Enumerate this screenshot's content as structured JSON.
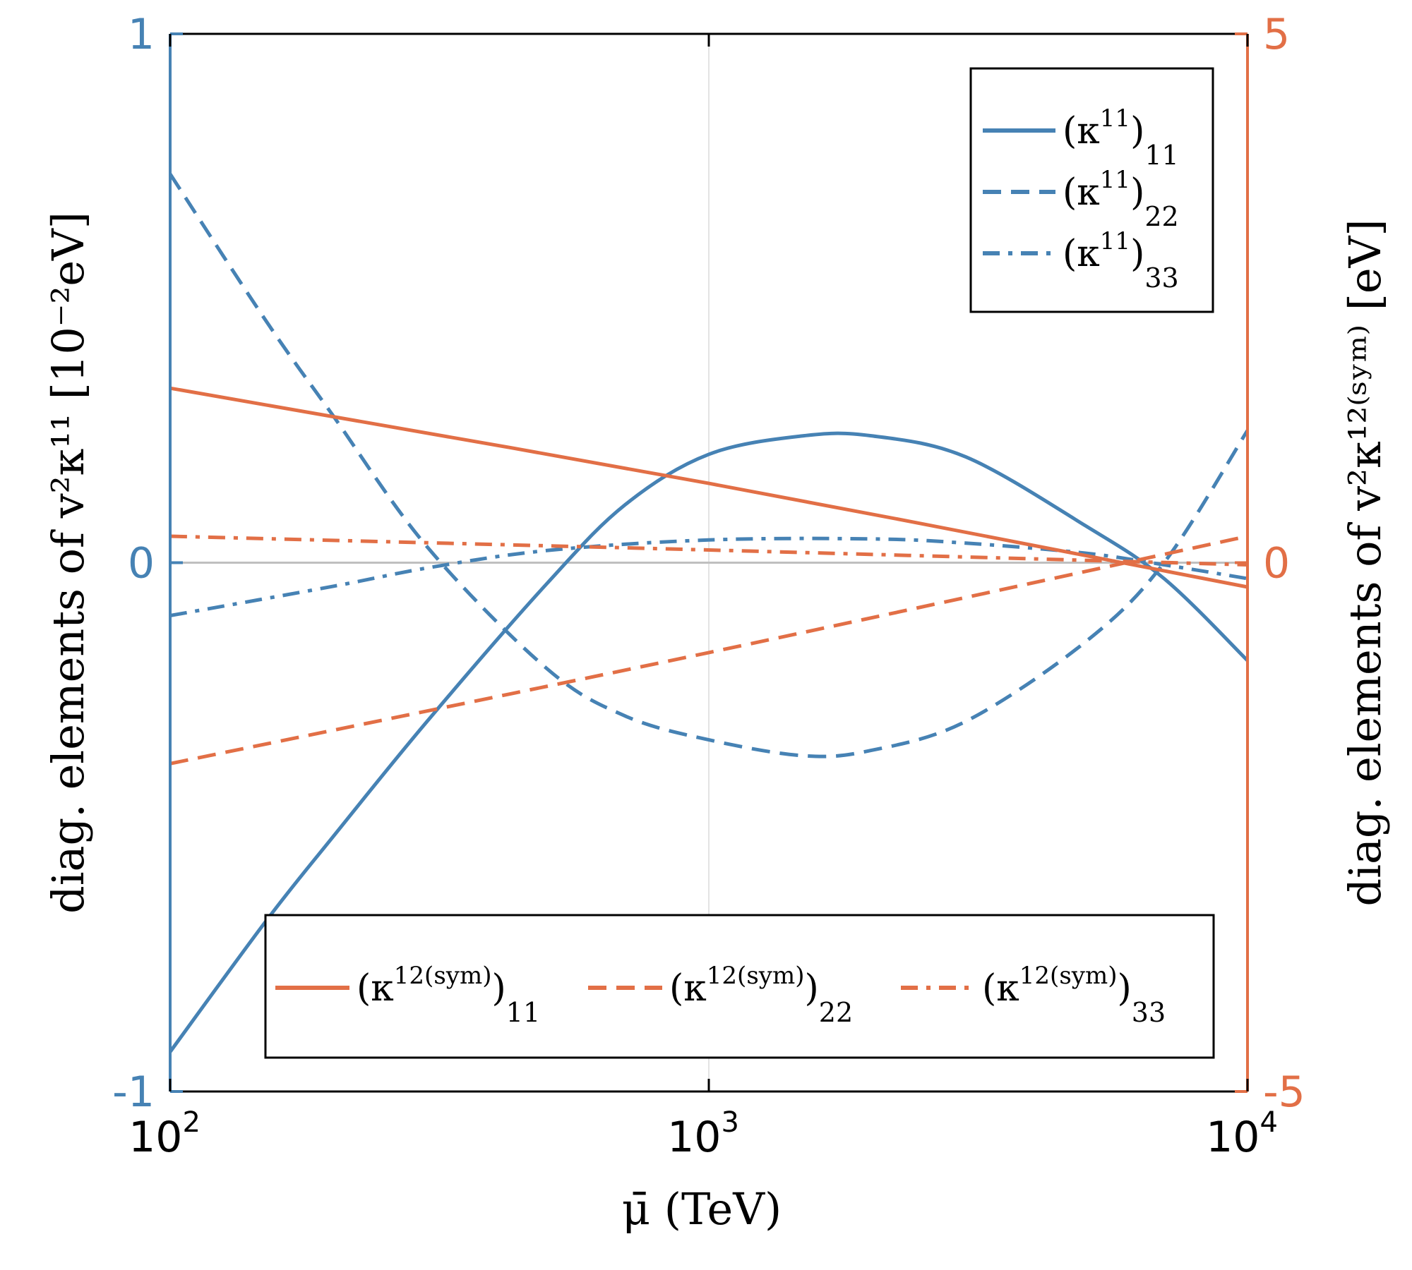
{
  "colors": {
    "blue": "#4682b4",
    "orange": "#e26f46",
    "frame": "#000000",
    "zero_line": "#bfbfbf",
    "grid": "#e3e3e3"
  },
  "chart_data": {
    "type": "line",
    "x_scale": "log",
    "x_range": [
      100,
      10000
    ],
    "x_ticks": [
      {
        "value": 100,
        "base": "10",
        "exp": "2"
      },
      {
        "value": 1000,
        "base": "10",
        "exp": "3"
      },
      {
        "value": 10000,
        "base": "10",
        "exp": "4"
      }
    ],
    "xlabel": "μ̄ (TeV)",
    "left_axis": {
      "label": "diag. elements of v²κ¹¹ [10⁻²eV]",
      "ylim": [
        -1,
        1
      ],
      "ticks": [
        {
          "value": 1,
          "label": "1"
        },
        {
          "value": 0,
          "label": "0"
        },
        {
          "value": -1,
          "label": "-1"
        }
      ]
    },
    "right_axis": {
      "label": "diag. elements of v²κ¹²⁽ˢʸᵐ⁾ [eV]",
      "ylim": [
        -5,
        5
      ],
      "ticks": [
        {
          "value": 5,
          "label": "5"
        },
        {
          "value": 0,
          "label": "0"
        },
        {
          "value": -5,
          "label": "-5"
        }
      ]
    },
    "series": [
      {
        "name": "(κ¹¹)₁₁",
        "axis": "left",
        "color": "blue",
        "style": "solid",
        "x": [
          100,
          150,
          200,
          300,
          500,
          700,
          1000,
          1500,
          2000,
          3000,
          5000,
          7000,
          10000
        ],
        "y": [
          -0.925,
          -0.68,
          -0.52,
          -0.3,
          -0.04,
          0.11,
          0.205,
          0.24,
          0.24,
          0.2,
          0.07,
          -0.03,
          -0.185
        ]
      },
      {
        "name": "(κ¹¹)₂₂",
        "axis": "left",
        "color": "blue",
        "style": "dashed",
        "x": [
          100,
          150,
          200,
          300,
          500,
          700,
          1000,
          1500,
          2000,
          3000,
          5000,
          7000,
          10000
        ],
        "y": [
          0.735,
          0.46,
          0.28,
          0.03,
          -0.2,
          -0.29,
          -0.335,
          -0.365,
          -0.355,
          -0.3,
          -0.15,
          0.0,
          0.25
        ]
      },
      {
        "name": "(κ¹¹)₃₃",
        "axis": "left",
        "color": "blue",
        "style": "dashdot",
        "x": [
          100,
          200,
          300,
          500,
          1000,
          2000,
          3000,
          5000,
          7000,
          10000
        ],
        "y": [
          -0.1,
          -0.045,
          -0.01,
          0.023,
          0.043,
          0.045,
          0.037,
          0.018,
          -0.004,
          -0.03
        ]
      },
      {
        "name": "(κ¹²⁽ˢʸᵐ⁾)₁₁",
        "axis": "right",
        "color": "orange",
        "style": "solid",
        "x": [
          100,
          1000,
          10000
        ],
        "y": [
          1.65,
          0.75,
          -0.23
        ]
      },
      {
        "name": "(κ¹²⁽ˢʸᵐ⁾)₂₂",
        "axis": "right",
        "color": "orange",
        "style": "dashed",
        "x": [
          100,
          1000,
          10000
        ],
        "y": [
          -1.9,
          -0.85,
          0.25
        ]
      },
      {
        "name": "(κ¹²⁽ˢʸᵐ⁾)₃₃",
        "axis": "right",
        "color": "orange",
        "style": "dashdot",
        "x": [
          100,
          1000,
          10000
        ],
        "y": [
          0.25,
          0.12,
          -0.02
        ]
      }
    ],
    "legends": [
      {
        "placement": "top-right",
        "entries": [
          {
            "style": "solid",
            "color": "blue",
            "base": "κ",
            "sup": "11",
            "sub": "11"
          },
          {
            "style": "dashed",
            "color": "blue",
            "base": "κ",
            "sup": "11",
            "sub": "22"
          },
          {
            "style": "dashdot",
            "color": "blue",
            "base": "κ",
            "sup": "11",
            "sub": "33"
          }
        ]
      },
      {
        "placement": "bottom",
        "entries": [
          {
            "style": "solid",
            "color": "orange",
            "base": "κ",
            "sup": "12(sym)",
            "sub": "11"
          },
          {
            "style": "dashed",
            "color": "orange",
            "base": "κ",
            "sup": "12(sym)",
            "sub": "22"
          },
          {
            "style": "dashdot",
            "color": "orange",
            "base": "κ",
            "sup": "12(sym)",
            "sub": "33"
          }
        ]
      }
    ]
  }
}
